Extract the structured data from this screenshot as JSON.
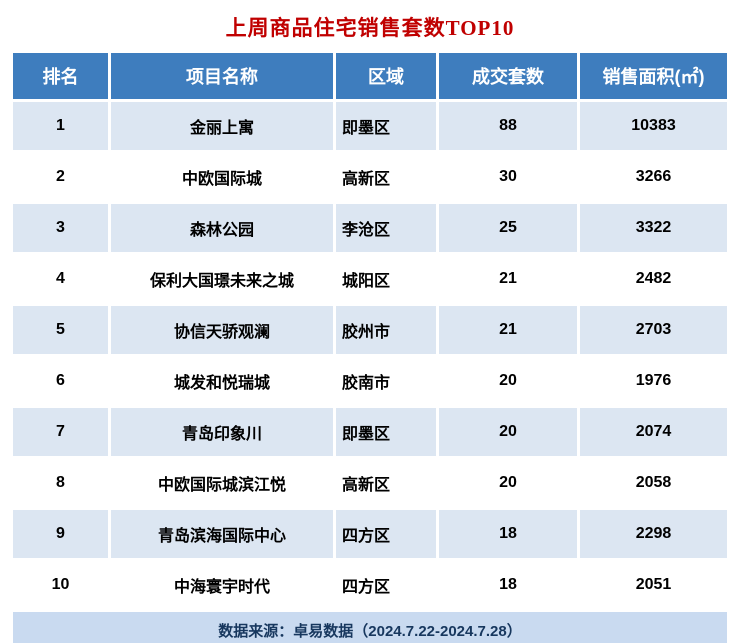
{
  "title": "上周商品住宅销售套数TOP10",
  "footer": {
    "source_label": "数据来源：卓易数据（2024.7.22-2024.7.28）"
  },
  "chart_data": {
    "type": "table",
    "title": "上周商品住宅销售套数TOP10",
    "columns": [
      "排名",
      "项目名称",
      "区域",
      "成交套数",
      "销售面积(㎡)"
    ],
    "rows": [
      [
        "1",
        "金丽上寓",
        "即墨区",
        "88",
        "10383"
      ],
      [
        "2",
        "中欧国际城",
        "高新区",
        "30",
        "3266"
      ],
      [
        "3",
        "森林公园",
        "李沧区",
        "25",
        "3322"
      ],
      [
        "4",
        "保利大国璟未来之城",
        "城阳区",
        "21",
        "2482"
      ],
      [
        "5",
        "协信天骄观澜",
        "胶州市",
        "21",
        "2703"
      ],
      [
        "6",
        "城发和悦瑞城",
        "胶南市",
        "20",
        "1976"
      ],
      [
        "7",
        "青岛印象川",
        "即墨区",
        "20",
        "2074"
      ],
      [
        "8",
        "中欧国际城滨江悦",
        "高新区",
        "20",
        "2058"
      ],
      [
        "9",
        "青岛滨海国际中心",
        "四方区",
        "18",
        "2298"
      ],
      [
        "10",
        "中海寰宇时代",
        "四方区",
        "18",
        "2051"
      ]
    ],
    "source": "数据来源：卓易数据（2024.7.22-2024.7.28）",
    "legend_position": "none",
    "grid": false
  },
  "colors": {
    "title_red": "#c00000",
    "header_blue": "#3e7dbe",
    "row_light_blue": "#dce6f2",
    "row_white": "#ffffff",
    "footer_blue": "#c9daf0",
    "footer_text": "#17375e",
    "bottom_bar": "#17375e"
  }
}
